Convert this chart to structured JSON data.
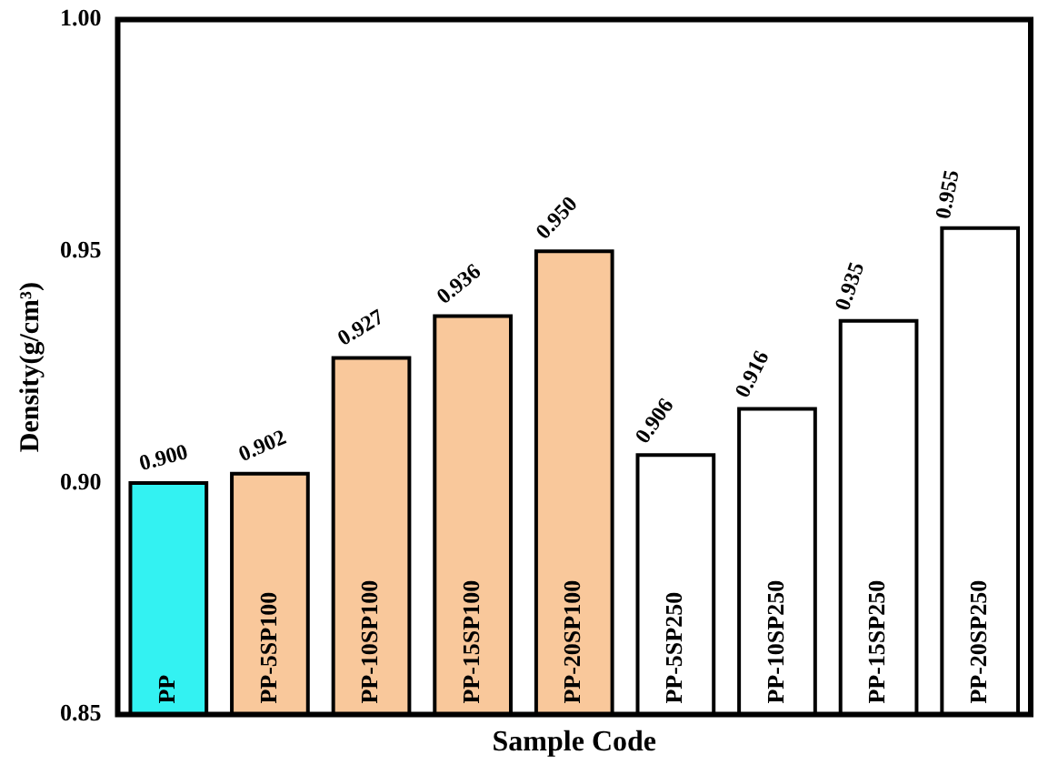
{
  "chart_data": {
    "type": "bar",
    "xlabel": "Sample Code",
    "ylabel": "Density(g/cm³)",
    "categories": [
      "PP",
      "PP-5SP100",
      "PP-10SP100",
      "PP-15SP100",
      "PP-20SP100",
      "PP-5SP250",
      "PP-10SP250",
      "PP-15SP250",
      "PP-20SP250"
    ],
    "values": [
      0.9,
      0.902,
      0.927,
      0.936,
      0.95,
      0.906,
      0.916,
      0.935,
      0.955
    ],
    "value_labels": [
      "0.900",
      "0.902",
      "0.927",
      "0.936",
      "0.950",
      "0.906",
      "0.916",
      "0.935",
      "0.955"
    ],
    "colors": [
      "#33f2f2",
      "#f9c89b",
      "#f9c89b",
      "#f9c89b",
      "#f9c89b",
      "#ffffff",
      "#ffffff",
      "#ffffff",
      "#ffffff"
    ],
    "ylim": [
      0.85,
      1.0
    ],
    "yticks": [
      {
        "value": 0.85,
        "label": "0.85"
      },
      {
        "value": 0.9,
        "label": "0.90"
      },
      {
        "value": 0.95,
        "label": "0.95"
      },
      {
        "value": 1.0,
        "label": "1.00"
      }
    ],
    "grid": false,
    "legend": false
  }
}
